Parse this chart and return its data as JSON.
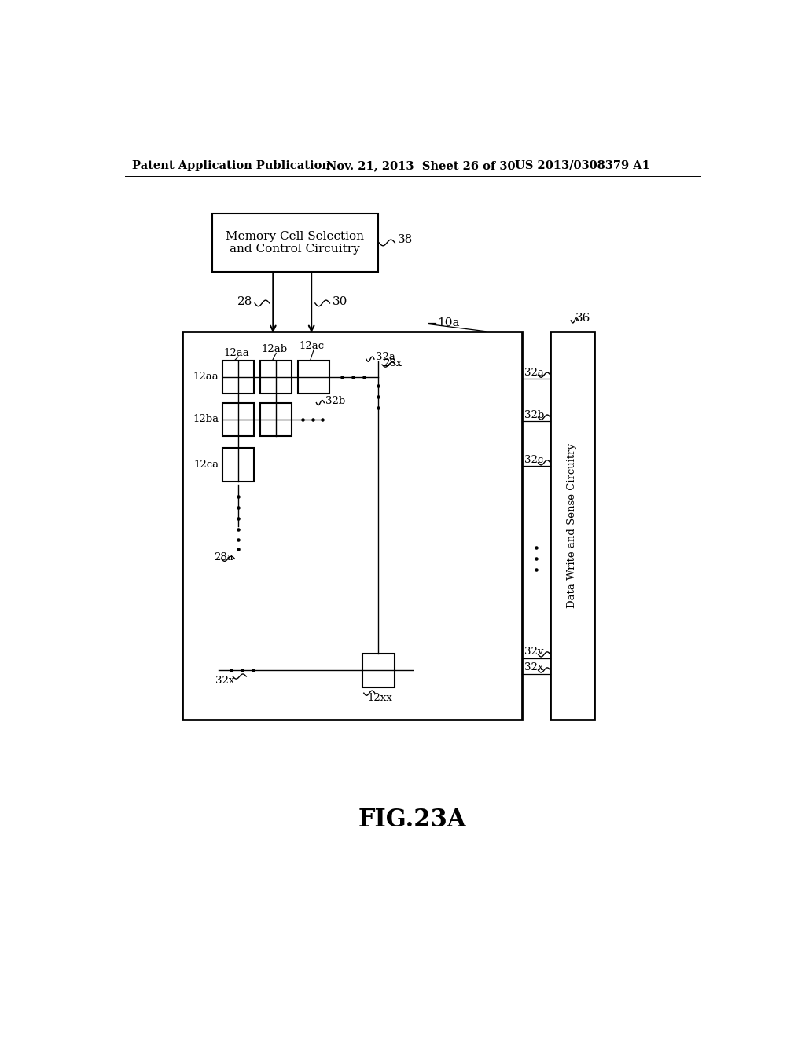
{
  "bg_color": "#ffffff",
  "header_left": "Patent Application Publication",
  "header_mid": "Nov. 21, 2013  Sheet 26 of 30",
  "header_right": "US 2013/0308379 A1",
  "fig_label": "FIG.23A",
  "memory_box_text": "Memory Cell Selection\nand Control Circuitry",
  "label_38": "38",
  "label_28": "28",
  "label_30": "30",
  "label_10a": "10a",
  "label_36": "36",
  "label_12aa_top": "12aa",
  "label_12ab_top": "12ab",
  "label_12ac_top": "12ac",
  "label_12aa_left": "12aa",
  "label_12ba_left": "12ba",
  "label_12ca_left": "12ca",
  "label_28a": "28a",
  "label_28x": "28x",
  "label_32a_inner": "32a",
  "label_32b_inner": "32b",
  "label_32x_inner": "32x",
  "label_12xx": "12xx",
  "label_32a_right": "32a",
  "label_32b_right": "32b",
  "label_32c_right": "32c",
  "label_32v_right": "32v",
  "label_32x_right": "32x",
  "data_write_text": "Data Write and Sense Circuitry"
}
